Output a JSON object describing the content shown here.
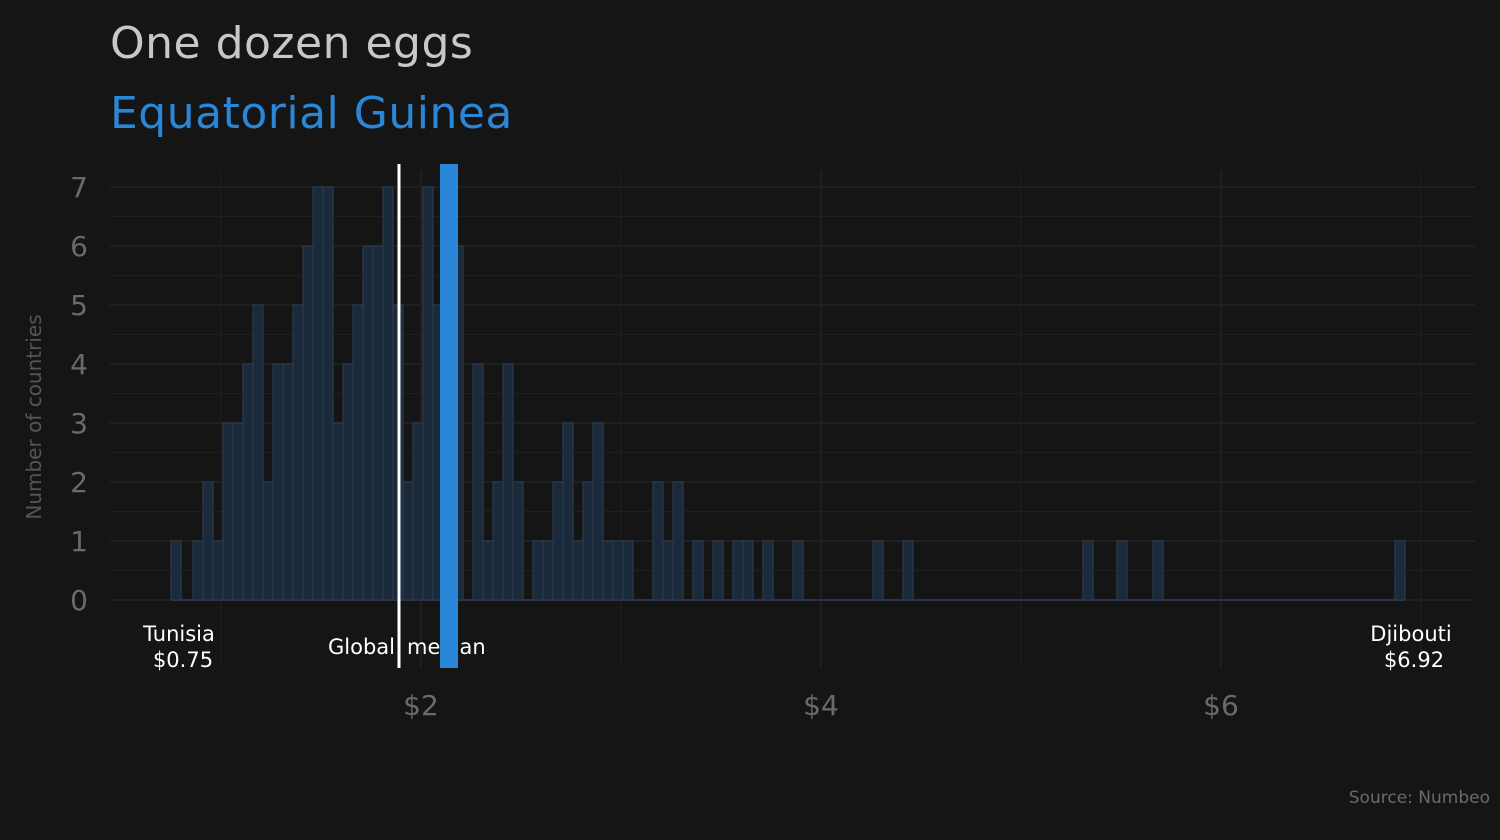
{
  "chart_data": {
    "type": "bar",
    "title": "One dozen eggs",
    "subtitle": "Equatorial Guinea",
    "ylabel": "Number of countries",
    "xlabel": "",
    "source": "Source: Numbeo",
    "xlim": [
      0.75,
      6.92
    ],
    "ylim": [
      0,
      7
    ],
    "x_ticks": [
      {
        "value": 2,
        "label": "$2"
      },
      {
        "value": 4,
        "label": "$4"
      },
      {
        "value": 6,
        "label": "$6"
      }
    ],
    "y_ticks": [
      0,
      1,
      2,
      3,
      4,
      5,
      6,
      7
    ],
    "bin_width": 0.05,
    "bins": [
      {
        "x": 0.75,
        "count": 1
      },
      {
        "x": 0.8,
        "count": 0
      },
      {
        "x": 0.86,
        "count": 1
      },
      {
        "x": 0.91,
        "count": 2
      },
      {
        "x": 0.96,
        "count": 1
      },
      {
        "x": 1.01,
        "count": 3
      },
      {
        "x": 1.06,
        "count": 3
      },
      {
        "x": 1.11,
        "count": 4
      },
      {
        "x": 1.16,
        "count": 5
      },
      {
        "x": 1.21,
        "count": 2
      },
      {
        "x": 1.26,
        "count": 4
      },
      {
        "x": 1.31,
        "count": 4
      },
      {
        "x": 1.36,
        "count": 5
      },
      {
        "x": 1.41,
        "count": 6
      },
      {
        "x": 1.46,
        "count": 7
      },
      {
        "x": 1.51,
        "count": 7
      },
      {
        "x": 1.56,
        "count": 3
      },
      {
        "x": 1.61,
        "count": 4
      },
      {
        "x": 1.66,
        "count": 5
      },
      {
        "x": 1.71,
        "count": 6
      },
      {
        "x": 1.76,
        "count": 6
      },
      {
        "x": 1.81,
        "count": 7
      },
      {
        "x": 1.86,
        "count": 5
      },
      {
        "x": 1.91,
        "count": 2
      },
      {
        "x": 1.96,
        "count": 3
      },
      {
        "x": 2.01,
        "count": 7
      },
      {
        "x": 2.06,
        "count": 5
      },
      {
        "x": 2.11,
        "count": 1
      },
      {
        "x": 2.16,
        "count": 6
      },
      {
        "x": 2.21,
        "count": 0
      },
      {
        "x": 2.26,
        "count": 4
      },
      {
        "x": 2.31,
        "count": 1
      },
      {
        "x": 2.36,
        "count": 2
      },
      {
        "x": 2.41,
        "count": 4
      },
      {
        "x": 2.46,
        "count": 2
      },
      {
        "x": 2.51,
        "count": 0
      },
      {
        "x": 2.56,
        "count": 1
      },
      {
        "x": 2.61,
        "count": 1
      },
      {
        "x": 2.66,
        "count": 2
      },
      {
        "x": 2.71,
        "count": 3
      },
      {
        "x": 2.76,
        "count": 1
      },
      {
        "x": 2.81,
        "count": 2
      },
      {
        "x": 2.86,
        "count": 3
      },
      {
        "x": 2.91,
        "count": 1
      },
      {
        "x": 2.96,
        "count": 1
      },
      {
        "x": 3.01,
        "count": 1
      },
      {
        "x": 3.06,
        "count": 0
      },
      {
        "x": 3.11,
        "count": 0
      },
      {
        "x": 3.16,
        "count": 2
      },
      {
        "x": 3.21,
        "count": 1
      },
      {
        "x": 3.26,
        "count": 2
      },
      {
        "x": 3.31,
        "count": 0
      },
      {
        "x": 3.36,
        "count": 1
      },
      {
        "x": 3.41,
        "count": 0
      },
      {
        "x": 3.46,
        "count": 1
      },
      {
        "x": 3.51,
        "count": 0
      },
      {
        "x": 3.56,
        "count": 1
      },
      {
        "x": 3.61,
        "count": 1
      },
      {
        "x": 3.66,
        "count": 0
      },
      {
        "x": 3.71,
        "count": 1
      },
      {
        "x": 3.86,
        "count": 1
      },
      {
        "x": 4.26,
        "count": 1
      },
      {
        "x": 4.41,
        "count": 1
      },
      {
        "x": 5.31,
        "count": 1
      },
      {
        "x": 5.48,
        "count": 1
      },
      {
        "x": 5.66,
        "count": 1
      },
      {
        "x": 6.87,
        "count": 1
      }
    ],
    "global_median": {
      "value": 1.89,
      "label_left": "Global",
      "label_right": "median",
      "color": "#ffffff"
    },
    "highlight": {
      "value": 2.14,
      "color": "#2a86d6"
    },
    "min_label": {
      "name": "Tunisia",
      "price": "$0.75",
      "value": 0.75
    },
    "max_label": {
      "name": "Djibouti",
      "price": "$6.92",
      "value": 6.92
    },
    "grid": true,
    "colors": {
      "background": "#151515",
      "bar_fill": "#1b2a3a",
      "bar_stroke": "#2c3e52",
      "grid": "#1f1f1f",
      "axis_text": "#6a6a6a"
    }
  }
}
